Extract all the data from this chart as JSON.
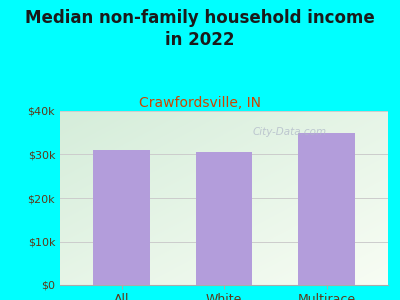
{
  "title_line1": "Median non-family household income",
  "title_line2": "in 2022",
  "subtitle": "Crawfordsville, IN",
  "categories": [
    "All",
    "White",
    "Multirace"
  ],
  "values": [
    31000,
    30500,
    35000
  ],
  "bar_color": "#b39ddb",
  "title_fontsize": 12,
  "subtitle_fontsize": 10,
  "subtitle_color": "#cc4400",
  "tick_label_color": "#5d3a1a",
  "axis_label_color": "#5d3a1a",
  "background_outer": "#00ffff",
  "ylim": [
    0,
    40000
  ],
  "yticks": [
    0,
    10000,
    20000,
    30000,
    40000
  ],
  "ytick_labels": [
    "$0",
    "$10k",
    "$20k",
    "$30k",
    "$40k"
  ],
  "watermark": "City-Data.com"
}
